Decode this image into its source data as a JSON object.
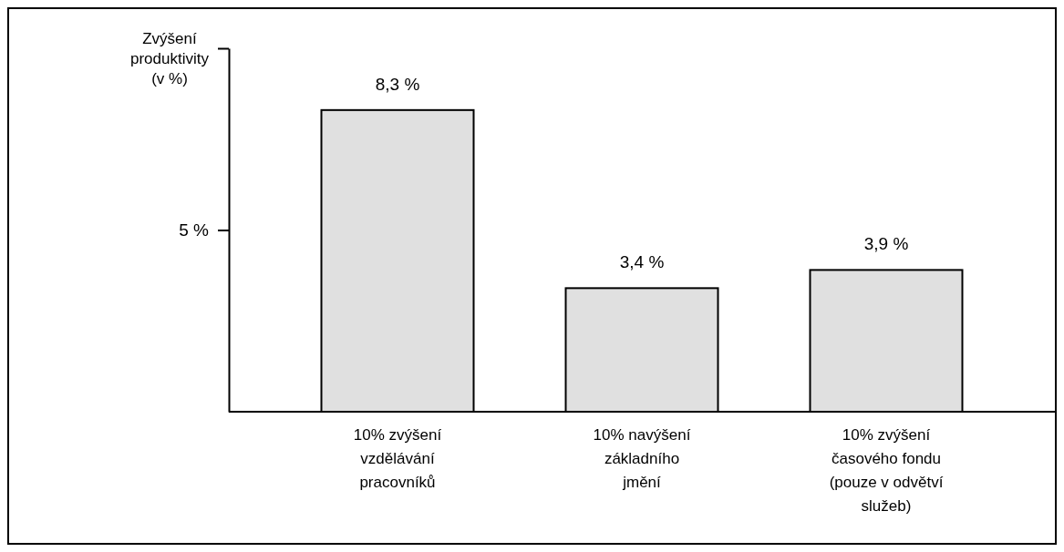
{
  "chart_data": {
    "type": "bar",
    "ylabel": "Zvýšení produktivity (v %)",
    "categories": [
      "10% zvýšení vzdělávání pracovníků",
      "10% navýšení základního jmění",
      "10% zvýšení časového fondu (pouze v odvětví služeb)"
    ],
    "values": [
      8.3,
      3.4,
      3.9
    ],
    "value_labels": [
      "8,3 %",
      "3,4 %",
      "3,9 %"
    ],
    "color": "#e0e0e0",
    "ylim": [
      0,
      10
    ],
    "yticks": [
      {
        "value": 5,
        "label": "5 %"
      },
      {
        "value": 10,
        "label": null
      }
    ],
    "grid": false
  }
}
